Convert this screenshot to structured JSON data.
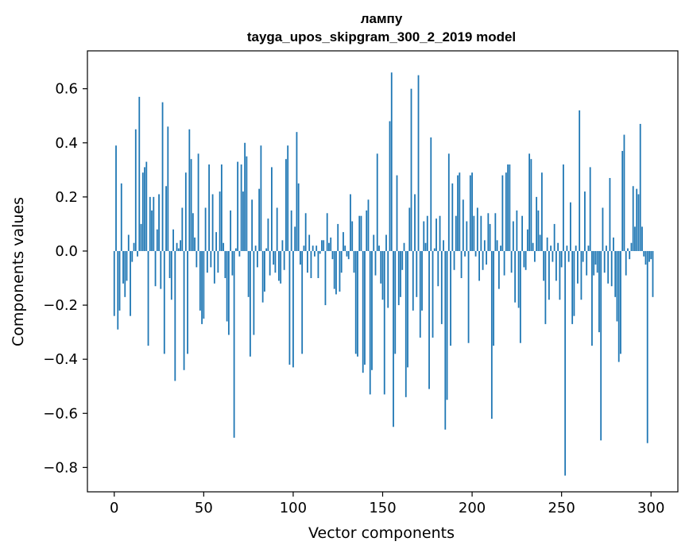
{
  "chart_data": {
    "type": "bar",
    "title_line1": "лампу",
    "title_line2": "tayga_upos_skipgram_300_2_2019 model",
    "xlabel": "Vector components",
    "ylabel": "Components values",
    "xlim": [
      -15,
      315
    ],
    "ylim": [
      -0.89,
      0.74
    ],
    "xticks": [
      0,
      50,
      100,
      150,
      200,
      250,
      300
    ],
    "xtick_labels": [
      "0",
      "50",
      "100",
      "150",
      "200",
      "250",
      "300"
    ],
    "yticks": [
      0.6,
      0.4,
      0.2,
      0.0,
      -0.2,
      -0.4,
      -0.6,
      -0.8
    ],
    "ytick_labels": [
      "0.6",
      "0.4",
      "0.2",
      "0.0",
      "−0.2",
      "−0.4",
      "−0.6",
      "−0.8"
    ],
    "bar_color": "#1f77b4",
    "values": [
      -0.24,
      0.39,
      -0.29,
      -0.22,
      0.25,
      -0.12,
      -0.17,
      -0.11,
      0.06,
      -0.24,
      -0.04,
      0.03,
      0.45,
      -0.02,
      0.57,
      0.1,
      0.29,
      0.31,
      0.33,
      -0.35,
      0.2,
      0.15,
      0.2,
      -0.13,
      0.08,
      0.21,
      -0.14,
      0.55,
      -0.38,
      0.24,
      0.46,
      -0.1,
      -0.18,
      0.08,
      -0.48,
      0.03,
      0.01,
      0.04,
      0.16,
      -0.44,
      0.29,
      -0.38,
      0.45,
      0.34,
      0.14,
      0.05,
      -0.06,
      0.36,
      -0.22,
      -0.27,
      -0.25,
      0.16,
      -0.08,
      0.32,
      -0.06,
      0.21,
      -0.12,
      0.07,
      -0.08,
      0.22,
      0.32,
      0.03,
      -0.1,
      -0.26,
      -0.31,
      0.15,
      -0.09,
      -0.69,
      0.01,
      0.33,
      -0.02,
      0.32,
      0.22,
      0.4,
      0.35,
      -0.17,
      -0.39,
      0.19,
      -0.31,
      0.02,
      -0.06,
      0.23,
      0.39,
      -0.19,
      -0.15,
      0.01,
      0.12,
      -0.09,
      0.31,
      -0.05,
      -0.08,
      0.16,
      -0.11,
      -0.12,
      0.04,
      -0.07,
      0.34,
      0.39,
      -0.42,
      0.15,
      -0.43,
      0.09,
      0.44,
      0.25,
      -0.05,
      -0.38,
      0.02,
      0.14,
      -0.08,
      0.06,
      -0.1,
      0.02,
      -0.02,
      0.02,
      -0.1,
      -0.01,
      0.04,
      0.04,
      -0.2,
      0.14,
      0.03,
      0.05,
      -0.03,
      -0.14,
      -0.16,
      0.1,
      -0.15,
      -0.08,
      0.07,
      0.02,
      -0.02,
      -0.03,
      0.21,
      0.11,
      -0.08,
      -0.38,
      -0.39,
      0.13,
      0.13,
      -0.45,
      -0.42,
      0.15,
      0.19,
      -0.53,
      -0.44,
      0.06,
      -0.09,
      0.36,
      0.02,
      -0.12,
      -0.18,
      -0.53,
      0.06,
      -0.21,
      0.48,
      0.66,
      -0.65,
      -0.38,
      0.28,
      -0.2,
      -0.17,
      -0.07,
      0.03,
      -0.54,
      -0.43,
      0.16,
      0.6,
      -0.22,
      0.21,
      -0.17,
      0.65,
      -0.32,
      -0.22,
      0.11,
      0.03,
      0.13,
      -0.51,
      0.42,
      -0.32,
      0.01,
      0.12,
      -0.13,
      0.13,
      -0.27,
      0.04,
      -0.66,
      -0.55,
      0.36,
      -0.35,
      0.25,
      -0.07,
      0.13,
      0.28,
      0.29,
      -0.1,
      0.19,
      -0.02,
      0.11,
      -0.34,
      0.28,
      0.29,
      0.13,
      -0.02,
      0.16,
      -0.11,
      0.13,
      -0.07,
      0.04,
      -0.05,
      0.14,
      0.1,
      -0.62,
      -0.35,
      0.14,
      0.04,
      -0.14,
      0.02,
      0.28,
      -0.09,
      0.29,
      0.32,
      0.32,
      -0.08,
      0.11,
      -0.19,
      0.15,
      -0.21,
      -0.34,
      0.13,
      -0.06,
      -0.07,
      0.08,
      0.36,
      0.34,
      0.03,
      -0.04,
      0.2,
      0.15,
      0.06,
      0.29,
      -0.11,
      -0.27,
      0.05,
      -0.18,
      0.02,
      -0.04,
      0.1,
      -0.11,
      0.03,
      -0.18,
      -0.06,
      0.32,
      -0.83,
      0.02,
      -0.04,
      0.18,
      -0.27,
      -0.24,
      0.02,
      -0.12,
      0.52,
      -0.18,
      -0.04,
      0.22,
      -0.09,
      0.02,
      0.31,
      -0.35,
      -0.09,
      -0.05,
      -0.08,
      -0.3,
      -0.7,
      0.16,
      -0.08,
      0.02,
      -0.12,
      0.27,
      -0.13,
      0.05,
      -0.17,
      -0.26,
      -0.41,
      -0.38,
      0.37,
      0.43,
      -0.09,
      0.01,
      -0.03,
      0.03,
      0.24,
      0.09,
      0.23,
      0.21,
      0.47,
      0.09,
      -0.02,
      -0.05,
      -0.71,
      -0.04,
      -0.03,
      -0.17
    ]
  }
}
